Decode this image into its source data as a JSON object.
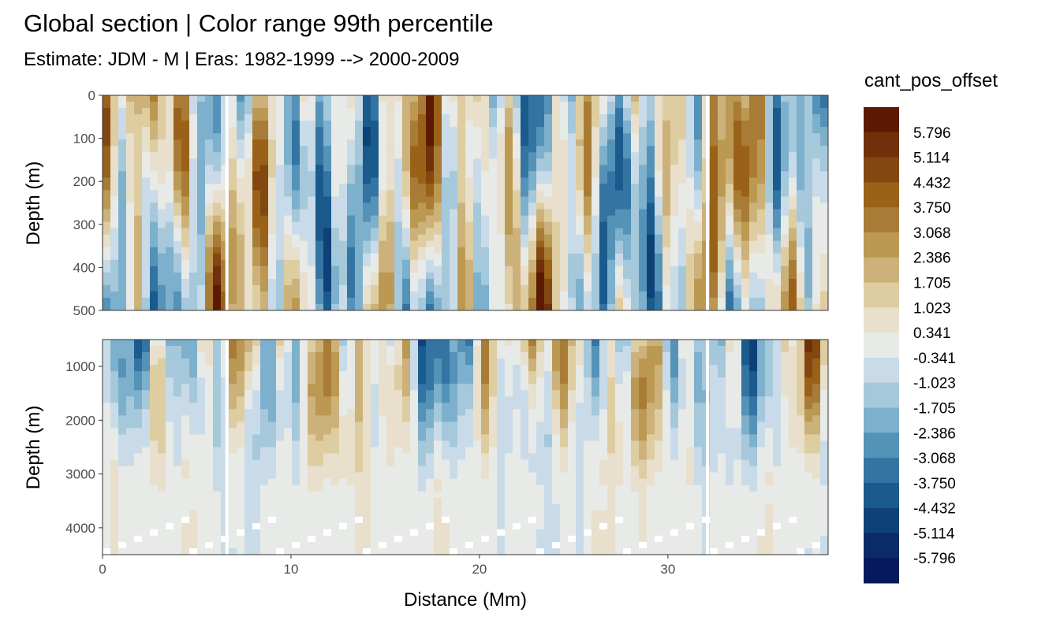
{
  "chart_data": {
    "type": "heatmap",
    "title": "Global section | Color range 99th percentile",
    "subtitle": "Estimate: JDM - M | Eras: 1982-1999 --> 2000-2009",
    "xlabel": "Distance (Mm)",
    "ylabel": "Depth (m)",
    "xlim": [
      0,
      38.5
    ],
    "x_ticks": [
      "0",
      "10",
      "20",
      "30"
    ],
    "panels": [
      {
        "ylim": [
          0,
          500
        ],
        "y_ticks": [
          "0",
          "100",
          "200",
          "300",
          "400",
          "500"
        ]
      },
      {
        "ylim": [
          500,
          4500
        ],
        "y_ticks": [
          "1000",
          "2000",
          "3000",
          "4000"
        ]
      }
    ],
    "legend": {
      "title": "cant_pos_offset",
      "position": "right",
      "labels": [
        "5.796",
        "5.114",
        "4.432",
        "3.750",
        "3.068",
        "2.386",
        "1.705",
        "1.023",
        "0.341",
        "-0.341",
        "-1.023",
        "-1.705",
        "-2.386",
        "-3.068",
        "-3.750",
        "-4.432",
        "-5.114",
        "-5.796"
      ],
      "colors": [
        "#5c1a03",
        "#70300a",
        "#834811",
        "#9a6119",
        "#a87c36",
        "#bc9953",
        "#cdb17a",
        "#decda1",
        "#e8e0cc",
        "#e7eae7",
        "#c9dbe8",
        "#a5c8db",
        "#7db0cc",
        "#5592b8",
        "#3474a2",
        "#1b5a8c",
        "#0f4179",
        "#0a2c66",
        "#06195c"
      ]
    }
  }
}
